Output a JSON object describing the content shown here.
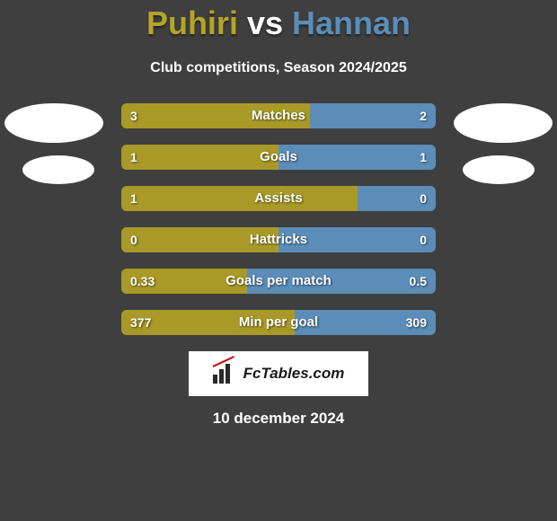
{
  "title": {
    "player1": "Puhiri",
    "vs": "vs",
    "player2": "Hannan"
  },
  "subtitle": "Club competitions, Season 2024/2025",
  "colors": {
    "player1": "#a99a28",
    "player2": "#5b8db8",
    "title_player1": "#b4a428",
    "title_player2": "#5b8db8",
    "background": "#3f3f3f",
    "text": "#ffffff"
  },
  "stats": [
    {
      "label": "Matches",
      "val1": "3",
      "val2": "2",
      "p1_width": 60,
      "p2_width": 40
    },
    {
      "label": "Goals",
      "val1": "1",
      "val2": "1",
      "p1_width": 50,
      "p2_width": 50
    },
    {
      "label": "Assists",
      "val1": "1",
      "val2": "0",
      "p1_width": 75,
      "p2_width": 25
    },
    {
      "label": "Hattricks",
      "val1": "0",
      "val2": "0",
      "p1_width": 50,
      "p2_width": 50
    },
    {
      "label": "Goals per match",
      "val1": "0.33",
      "val2": "0.5",
      "p1_width": 40,
      "p2_width": 60
    },
    {
      "label": "Min per goal",
      "val1": "377",
      "val2": "309",
      "p1_width": 55,
      "p2_width": 45
    }
  ],
  "logo_text": "FcTables.com",
  "date": "10 december 2024"
}
